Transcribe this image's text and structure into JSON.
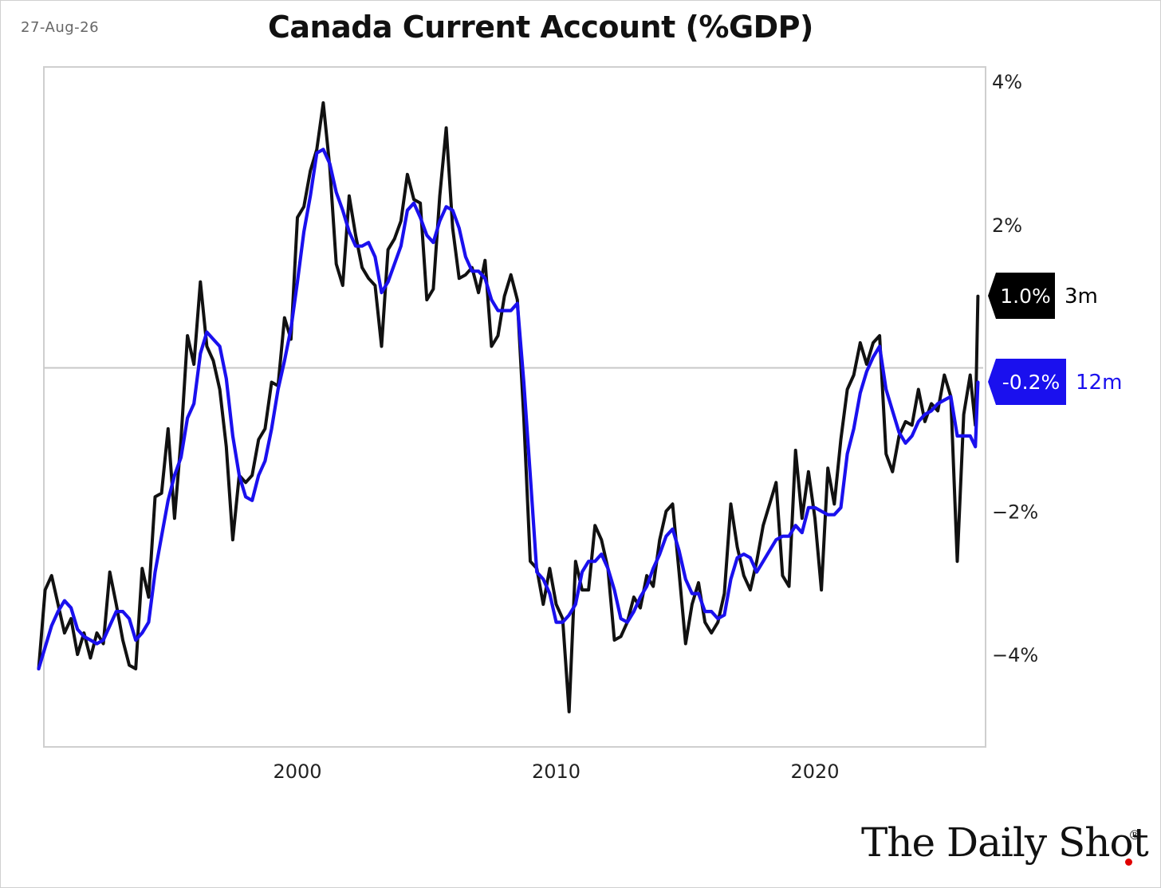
{
  "date": "27-Aug-26",
  "brand": {
    "name": "The Daily Shot",
    "mark": "®",
    "dot_color": "#e00000"
  },
  "chart_data": {
    "type": "line",
    "title": "Canada Current Account (%GDP)",
    "xlabel": "",
    "ylabel": "",
    "x_ticks": [
      {
        "value": 2000,
        "label": "2000"
      },
      {
        "value": 2010,
        "label": "2010"
      },
      {
        "value": 2020,
        "label": "2020"
      }
    ],
    "y_ticks": [
      {
        "value": 4,
        "label": "4%"
      },
      {
        "value": 2,
        "label": "2%"
      },
      {
        "value": -2,
        "label": "−2%"
      },
      {
        "value": -4,
        "label": "−4%"
      }
    ],
    "xlim": [
      1990,
      2026.3
    ],
    "ylim": [
      -5.3,
      4.2
    ],
    "y_axis_side": "right",
    "zero_line": true,
    "grid": false,
    "end_labels": [
      {
        "text": "1.0%",
        "series": "3m",
        "value": 1.0,
        "bg": "#000000",
        "fg": "#ffffff",
        "color": "#000000"
      },
      {
        "text": "-0.2%",
        "series": "12m",
        "value": -0.2,
        "bg": "#1a10ee",
        "fg": "#ffffff",
        "color": "#1a10ee"
      }
    ],
    "series": [
      {
        "name": "3m",
        "color": "#111111",
        "points": [
          [
            1990.0,
            -4.2
          ],
          [
            1990.25,
            -3.1
          ],
          [
            1990.5,
            -2.9
          ],
          [
            1990.75,
            -3.3
          ],
          [
            1991.0,
            -3.7
          ],
          [
            1991.25,
            -3.5
          ],
          [
            1991.5,
            -4.0
          ],
          [
            1991.75,
            -3.7
          ],
          [
            1992.0,
            -4.05
          ],
          [
            1992.25,
            -3.7
          ],
          [
            1992.5,
            -3.85
          ],
          [
            1992.75,
            -2.85
          ],
          [
            1993.0,
            -3.3
          ],
          [
            1993.25,
            -3.8
          ],
          [
            1993.5,
            -4.15
          ],
          [
            1993.75,
            -4.2
          ],
          [
            1994.0,
            -2.8
          ],
          [
            1994.25,
            -3.2
          ],
          [
            1994.5,
            -1.8
          ],
          [
            1994.75,
            -1.75
          ],
          [
            1995.0,
            -0.85
          ],
          [
            1995.25,
            -2.1
          ],
          [
            1995.5,
            -1.0
          ],
          [
            1995.75,
            0.45
          ],
          [
            1996.0,
            0.05
          ],
          [
            1996.25,
            1.2
          ],
          [
            1996.5,
            0.3
          ],
          [
            1996.75,
            0.1
          ],
          [
            1997.0,
            -0.3
          ],
          [
            1997.25,
            -1.1
          ],
          [
            1997.5,
            -2.4
          ],
          [
            1997.75,
            -1.5
          ],
          [
            1998.0,
            -1.6
          ],
          [
            1998.25,
            -1.5
          ],
          [
            1998.5,
            -1.0
          ],
          [
            1998.75,
            -0.85
          ],
          [
            1999.0,
            -0.2
          ],
          [
            1999.25,
            -0.25
          ],
          [
            1999.5,
            0.7
          ],
          [
            1999.75,
            0.4
          ],
          [
            2000.0,
            2.1
          ],
          [
            2000.25,
            2.25
          ],
          [
            2000.5,
            2.75
          ],
          [
            2000.75,
            3.05
          ],
          [
            2001.0,
            3.7
          ],
          [
            2001.25,
            2.8
          ],
          [
            2001.5,
            1.45
          ],
          [
            2001.75,
            1.15
          ],
          [
            2002.0,
            2.4
          ],
          [
            2002.25,
            1.85
          ],
          [
            2002.5,
            1.4
          ],
          [
            2002.75,
            1.25
          ],
          [
            2003.0,
            1.15
          ],
          [
            2003.25,
            0.3
          ],
          [
            2003.5,
            1.65
          ],
          [
            2003.75,
            1.8
          ],
          [
            2004.0,
            2.05
          ],
          [
            2004.25,
            2.7
          ],
          [
            2004.5,
            2.35
          ],
          [
            2004.75,
            2.3
          ],
          [
            2005.0,
            0.95
          ],
          [
            2005.25,
            1.1
          ],
          [
            2005.5,
            2.4
          ],
          [
            2005.75,
            3.35
          ],
          [
            2006.0,
            1.95
          ],
          [
            2006.25,
            1.25
          ],
          [
            2006.5,
            1.3
          ],
          [
            2006.75,
            1.4
          ],
          [
            2007.0,
            1.05
          ],
          [
            2007.25,
            1.5
          ],
          [
            2007.5,
            0.3
          ],
          [
            2007.75,
            0.45
          ],
          [
            2008.0,
            1.0
          ],
          [
            2008.25,
            1.3
          ],
          [
            2008.5,
            0.95
          ],
          [
            2008.75,
            -0.7
          ],
          [
            2009.0,
            -2.7
          ],
          [
            2009.25,
            -2.8
          ],
          [
            2009.5,
            -3.3
          ],
          [
            2009.75,
            -2.8
          ],
          [
            2010.0,
            -3.3
          ],
          [
            2010.25,
            -3.5
          ],
          [
            2010.5,
            -4.8
          ],
          [
            2010.75,
            -2.7
          ],
          [
            2011.0,
            -3.1
          ],
          [
            2011.25,
            -3.1
          ],
          [
            2011.5,
            -2.2
          ],
          [
            2011.75,
            -2.4
          ],
          [
            2012.0,
            -2.8
          ],
          [
            2012.25,
            -3.8
          ],
          [
            2012.5,
            -3.75
          ],
          [
            2012.75,
            -3.55
          ],
          [
            2013.0,
            -3.2
          ],
          [
            2013.25,
            -3.35
          ],
          [
            2013.5,
            -2.9
          ],
          [
            2013.75,
            -3.05
          ],
          [
            2014.0,
            -2.4
          ],
          [
            2014.25,
            -2.0
          ],
          [
            2014.5,
            -1.9
          ],
          [
            2014.75,
            -2.85
          ],
          [
            2015.0,
            -3.85
          ],
          [
            2015.25,
            -3.3
          ],
          [
            2015.5,
            -3.0
          ],
          [
            2015.75,
            -3.55
          ],
          [
            2016.0,
            -3.7
          ],
          [
            2016.25,
            -3.55
          ],
          [
            2016.5,
            -3.15
          ],
          [
            2016.75,
            -1.9
          ],
          [
            2017.0,
            -2.5
          ],
          [
            2017.25,
            -2.9
          ],
          [
            2017.5,
            -3.1
          ],
          [
            2017.75,
            -2.7
          ],
          [
            2018.0,
            -2.2
          ],
          [
            2018.25,
            -1.9
          ],
          [
            2018.5,
            -1.6
          ],
          [
            2018.75,
            -2.9
          ],
          [
            2019.0,
            -3.05
          ],
          [
            2019.25,
            -1.15
          ],
          [
            2019.5,
            -2.1
          ],
          [
            2019.75,
            -1.45
          ],
          [
            2020.0,
            -2.1
          ],
          [
            2020.25,
            -3.1
          ],
          [
            2020.5,
            -1.4
          ],
          [
            2020.75,
            -1.9
          ],
          [
            2021.0,
            -1.0
          ],
          [
            2021.25,
            -0.3
          ],
          [
            2021.5,
            -0.1
          ],
          [
            2021.75,
            0.35
          ],
          [
            2022.0,
            0.05
          ],
          [
            2022.25,
            0.35
          ],
          [
            2022.5,
            0.45
          ],
          [
            2022.75,
            -1.2
          ],
          [
            2023.0,
            -1.45
          ],
          [
            2023.25,
            -0.95
          ],
          [
            2023.5,
            -0.75
          ],
          [
            2023.75,
            -0.8
          ],
          [
            2024.0,
            -0.3
          ],
          [
            2024.25,
            -0.75
          ],
          [
            2024.5,
            -0.5
          ],
          [
            2024.75,
            -0.6
          ],
          [
            2025.0,
            -0.1
          ],
          [
            2025.25,
            -0.4
          ],
          [
            2025.5,
            -2.7
          ],
          [
            2025.75,
            -0.65
          ],
          [
            2026.0,
            -0.1
          ],
          [
            2026.2,
            -0.8
          ],
          [
            2026.3,
            1.0
          ]
        ]
      },
      {
        "name": "12m",
        "color": "#1a10ee",
        "points": [
          [
            1990.0,
            -4.2
          ],
          [
            1990.25,
            -3.9
          ],
          [
            1990.5,
            -3.6
          ],
          [
            1990.75,
            -3.4
          ],
          [
            1991.0,
            -3.25
          ],
          [
            1991.25,
            -3.35
          ],
          [
            1991.5,
            -3.65
          ],
          [
            1991.75,
            -3.75
          ],
          [
            1992.0,
            -3.8
          ],
          [
            1992.25,
            -3.85
          ],
          [
            1992.5,
            -3.8
          ],
          [
            1992.75,
            -3.6
          ],
          [
            1993.0,
            -3.4
          ],
          [
            1993.25,
            -3.4
          ],
          [
            1993.5,
            -3.5
          ],
          [
            1993.75,
            -3.8
          ],
          [
            1994.0,
            -3.7
          ],
          [
            1994.25,
            -3.55
          ],
          [
            1994.5,
            -2.85
          ],
          [
            1994.75,
            -2.35
          ],
          [
            1995.0,
            -1.85
          ],
          [
            1995.25,
            -1.5
          ],
          [
            1995.5,
            -1.25
          ],
          [
            1995.75,
            -0.7
          ],
          [
            1996.0,
            -0.5
          ],
          [
            1996.25,
            0.2
          ],
          [
            1996.5,
            0.5
          ],
          [
            1996.75,
            0.4
          ],
          [
            1997.0,
            0.3
          ],
          [
            1997.25,
            -0.15
          ],
          [
            1997.5,
            -0.95
          ],
          [
            1997.75,
            -1.5
          ],
          [
            1998.0,
            -1.8
          ],
          [
            1998.25,
            -1.85
          ],
          [
            1998.5,
            -1.5
          ],
          [
            1998.75,
            -1.3
          ],
          [
            1999.0,
            -0.85
          ],
          [
            1999.25,
            -0.3
          ],
          [
            1999.5,
            0.1
          ],
          [
            1999.75,
            0.55
          ],
          [
            2000.0,
            1.2
          ],
          [
            2000.25,
            1.9
          ],
          [
            2000.5,
            2.4
          ],
          [
            2000.75,
            3.0
          ],
          [
            2001.0,
            3.05
          ],
          [
            2001.25,
            2.85
          ],
          [
            2001.5,
            2.45
          ],
          [
            2001.75,
            2.2
          ],
          [
            2002.0,
            1.9
          ],
          [
            2002.25,
            1.7
          ],
          [
            2002.5,
            1.7
          ],
          [
            2002.75,
            1.75
          ],
          [
            2003.0,
            1.55
          ],
          [
            2003.25,
            1.05
          ],
          [
            2003.5,
            1.2
          ],
          [
            2003.75,
            1.45
          ],
          [
            2004.0,
            1.7
          ],
          [
            2004.25,
            2.2
          ],
          [
            2004.5,
            2.3
          ],
          [
            2004.75,
            2.1
          ],
          [
            2005.0,
            1.85
          ],
          [
            2005.25,
            1.75
          ],
          [
            2005.5,
            2.05
          ],
          [
            2005.75,
            2.25
          ],
          [
            2006.0,
            2.2
          ],
          [
            2006.25,
            1.95
          ],
          [
            2006.5,
            1.55
          ],
          [
            2006.75,
            1.35
          ],
          [
            2007.0,
            1.35
          ],
          [
            2007.25,
            1.25
          ],
          [
            2007.5,
            0.95
          ],
          [
            2007.75,
            0.8
          ],
          [
            2008.0,
            0.8
          ],
          [
            2008.25,
            0.8
          ],
          [
            2008.5,
            0.9
          ],
          [
            2008.75,
            -0.2
          ],
          [
            2009.0,
            -1.5
          ],
          [
            2009.25,
            -2.85
          ],
          [
            2009.5,
            -2.95
          ],
          [
            2009.75,
            -3.15
          ],
          [
            2010.0,
            -3.55
          ],
          [
            2010.25,
            -3.55
          ],
          [
            2010.5,
            -3.45
          ],
          [
            2010.75,
            -3.3
          ],
          [
            2011.0,
            -2.85
          ],
          [
            2011.25,
            -2.7
          ],
          [
            2011.5,
            -2.7
          ],
          [
            2011.75,
            -2.6
          ],
          [
            2012.0,
            -2.8
          ],
          [
            2012.25,
            -3.1
          ],
          [
            2012.5,
            -3.5
          ],
          [
            2012.75,
            -3.55
          ],
          [
            2013.0,
            -3.4
          ],
          [
            2013.25,
            -3.2
          ],
          [
            2013.5,
            -3.05
          ],
          [
            2013.75,
            -2.8
          ],
          [
            2014.0,
            -2.6
          ],
          [
            2014.25,
            -2.35
          ],
          [
            2014.5,
            -2.25
          ],
          [
            2014.75,
            -2.55
          ],
          [
            2015.0,
            -2.95
          ],
          [
            2015.25,
            -3.15
          ],
          [
            2015.5,
            -3.15
          ],
          [
            2015.75,
            -3.4
          ],
          [
            2016.0,
            -3.4
          ],
          [
            2016.25,
            -3.5
          ],
          [
            2016.5,
            -3.45
          ],
          [
            2016.75,
            -2.95
          ],
          [
            2017.0,
            -2.65
          ],
          [
            2017.25,
            -2.6
          ],
          [
            2017.5,
            -2.65
          ],
          [
            2017.75,
            -2.85
          ],
          [
            2018.0,
            -2.7
          ],
          [
            2018.25,
            -2.55
          ],
          [
            2018.5,
            -2.4
          ],
          [
            2018.75,
            -2.35
          ],
          [
            2019.0,
            -2.35
          ],
          [
            2019.25,
            -2.2
          ],
          [
            2019.5,
            -2.3
          ],
          [
            2019.75,
            -1.95
          ],
          [
            2020.0,
            -1.95
          ],
          [
            2020.25,
            -2.0
          ],
          [
            2020.5,
            -2.05
          ],
          [
            2020.75,
            -2.05
          ],
          [
            2021.0,
            -1.95
          ],
          [
            2021.25,
            -1.2
          ],
          [
            2021.5,
            -0.85
          ],
          [
            2021.75,
            -0.35
          ],
          [
            2022.0,
            -0.05
          ],
          [
            2022.25,
            0.15
          ],
          [
            2022.5,
            0.3
          ],
          [
            2022.75,
            -0.3
          ],
          [
            2023.0,
            -0.6
          ],
          [
            2023.25,
            -0.9
          ],
          [
            2023.5,
            -1.05
          ],
          [
            2023.75,
            -0.95
          ],
          [
            2024.0,
            -0.75
          ],
          [
            2024.25,
            -0.65
          ],
          [
            2024.5,
            -0.6
          ],
          [
            2024.75,
            -0.5
          ],
          [
            2025.0,
            -0.45
          ],
          [
            2025.25,
            -0.4
          ],
          [
            2025.5,
            -0.95
          ],
          [
            2025.75,
            -0.95
          ],
          [
            2026.0,
            -0.95
          ],
          [
            2026.2,
            -1.1
          ],
          [
            2026.3,
            -0.2
          ]
        ]
      }
    ]
  }
}
